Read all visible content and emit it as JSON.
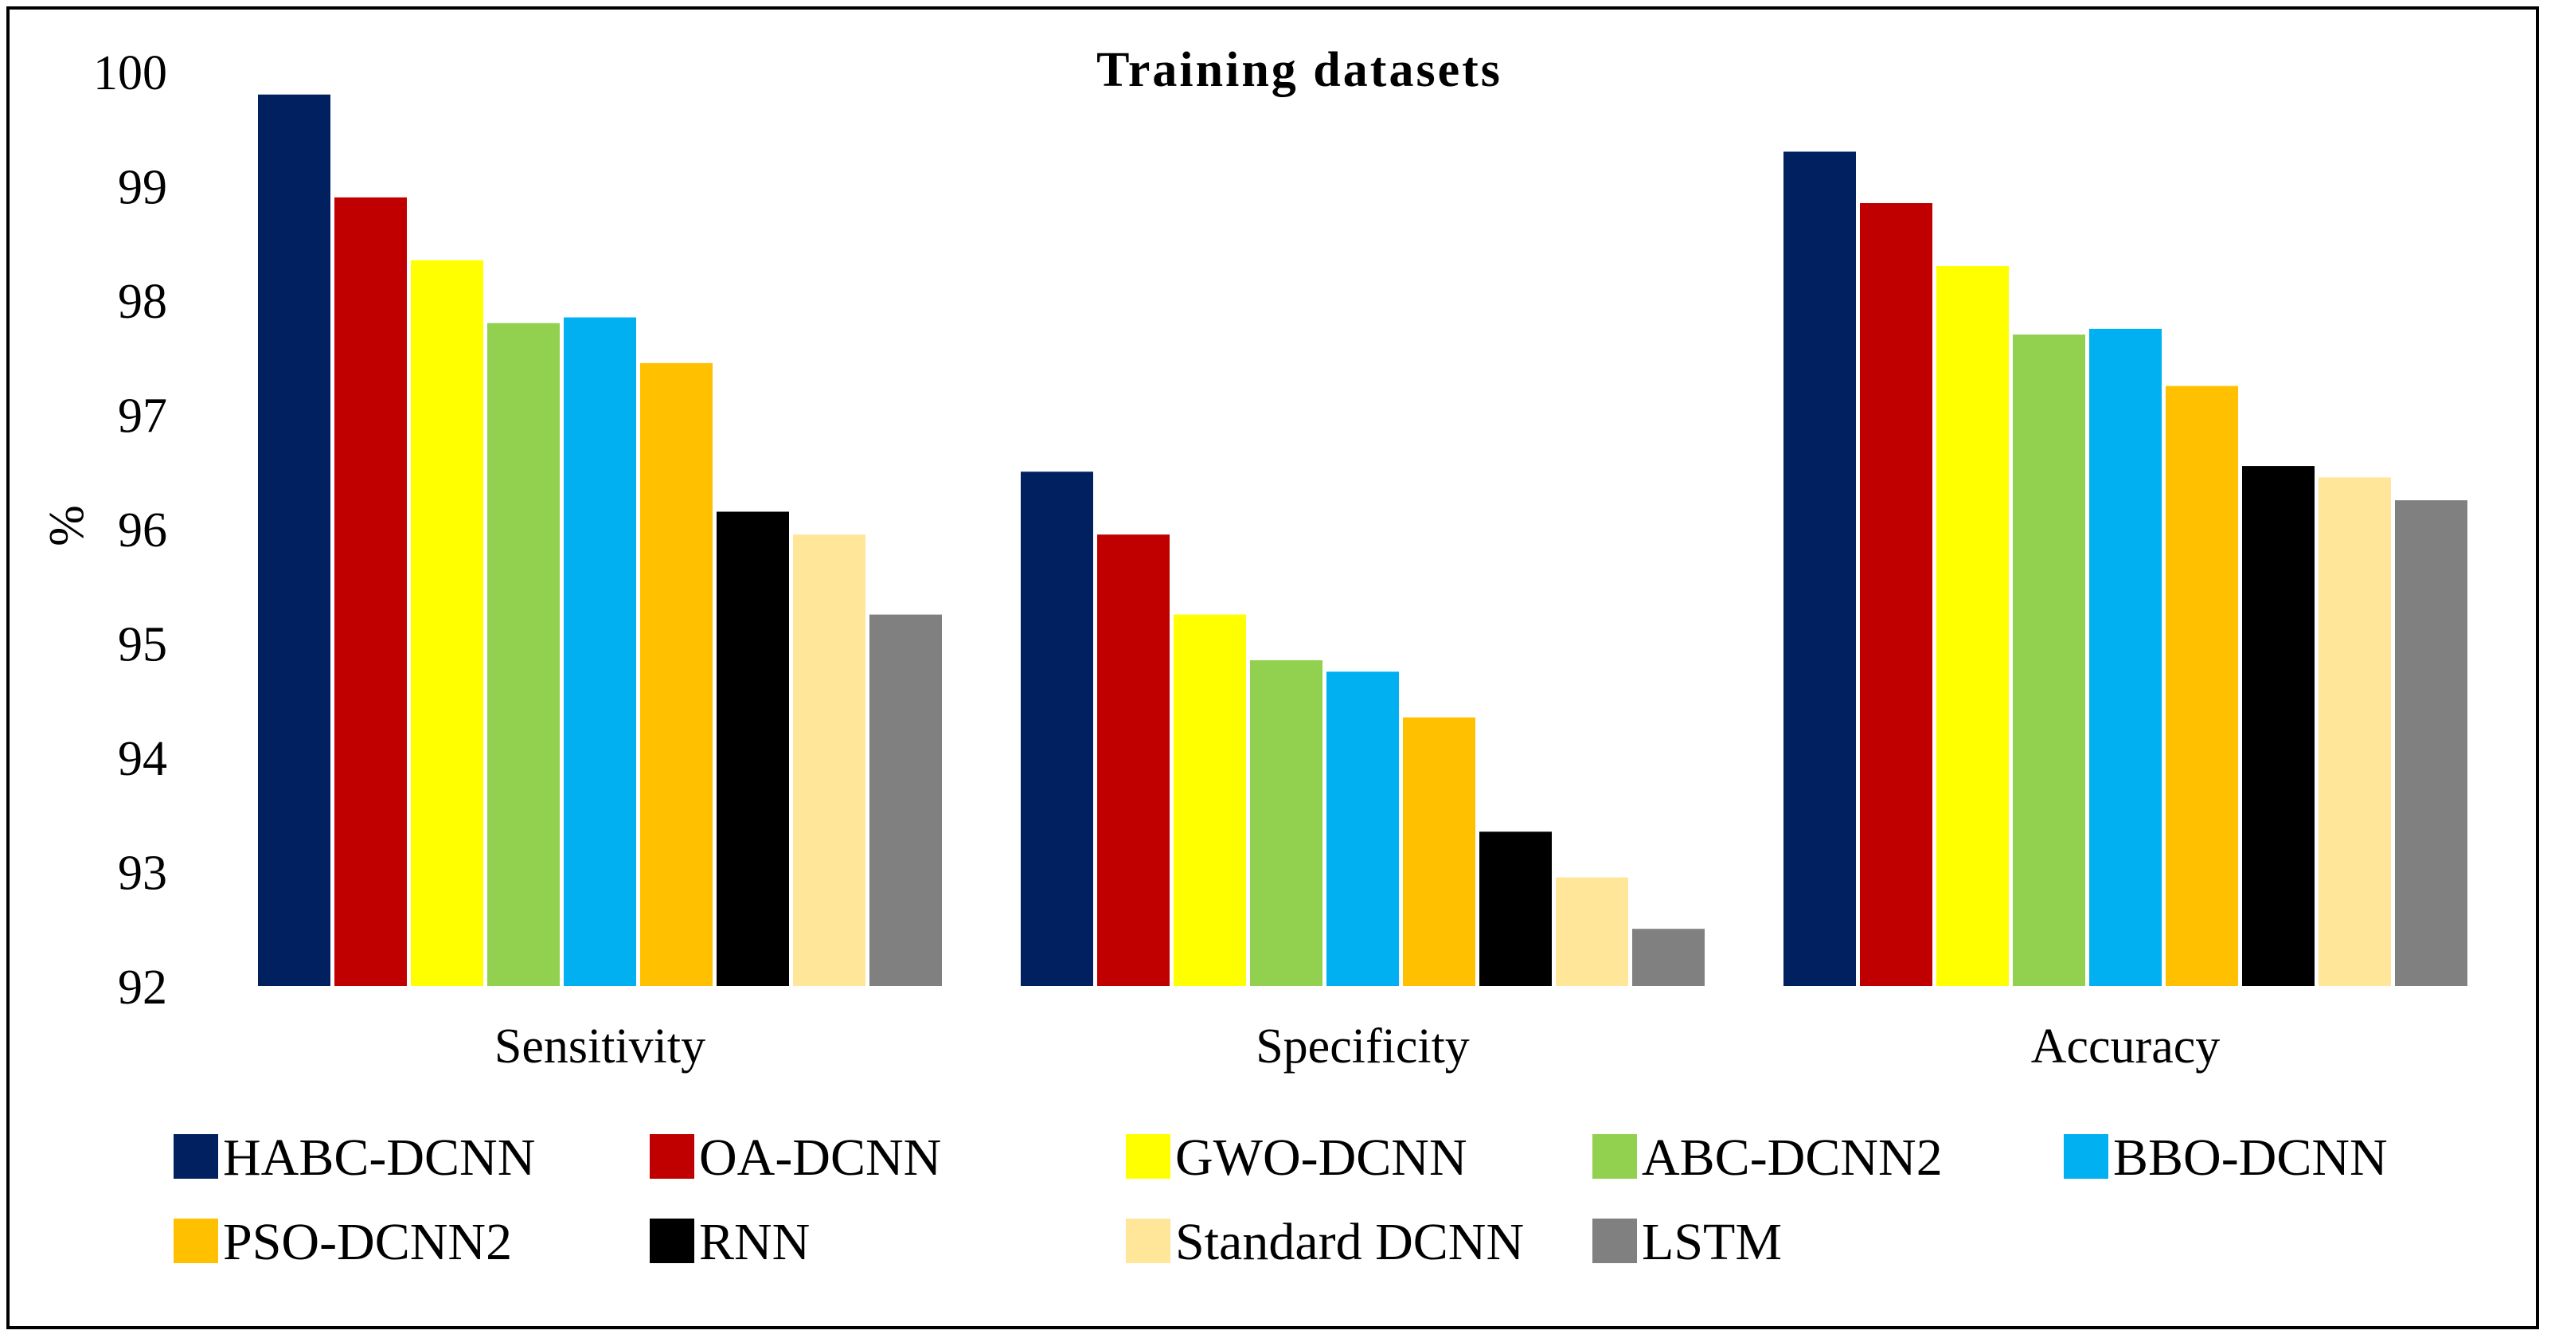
{
  "chart_data": {
    "type": "bar",
    "title": "Training datasets",
    "xlabel": "",
    "ylabel": "%",
    "ylim": [
      92,
      100
    ],
    "yticks": [
      92,
      93,
      94,
      95,
      96,
      97,
      98,
      99,
      100
    ],
    "grid": false,
    "legend_position": "bottom",
    "categories": [
      "Sensitivity",
      "Specificity",
      "Accuracy"
    ],
    "series": [
      {
        "name": "HABC-DCNN",
        "color": "#002060",
        "values": [
          99.8,
          96.5,
          99.3
        ]
      },
      {
        "name": "OA-DCNN",
        "color": "#C00000",
        "values": [
          98.9,
          95.95,
          98.85
        ]
      },
      {
        "name": "GWO-DCNN",
        "color": "#FFFF00",
        "values": [
          98.35,
          95.25,
          98.3
        ]
      },
      {
        "name": "ABC-DCNN2",
        "color": "#92D050",
        "values": [
          97.8,
          94.85,
          97.7
        ]
      },
      {
        "name": "BBO-DCNN",
        "color": "#00B0F0",
        "values": [
          97.85,
          94.75,
          97.75
        ]
      },
      {
        "name": "PSO-DCNN2",
        "color": "#FFC000",
        "values": [
          97.45,
          94.35,
          97.25
        ]
      },
      {
        "name": "RNN",
        "color": "#000000",
        "values": [
          96.15,
          93.35,
          96.55
        ]
      },
      {
        "name": "Standard DCNN",
        "color": "#FFE699",
        "values": [
          95.95,
          92.95,
          96.45
        ]
      },
      {
        "name": "LSTM",
        "color": "#808080",
        "values": [
          95.25,
          92.5,
          96.25
        ]
      }
    ]
  }
}
